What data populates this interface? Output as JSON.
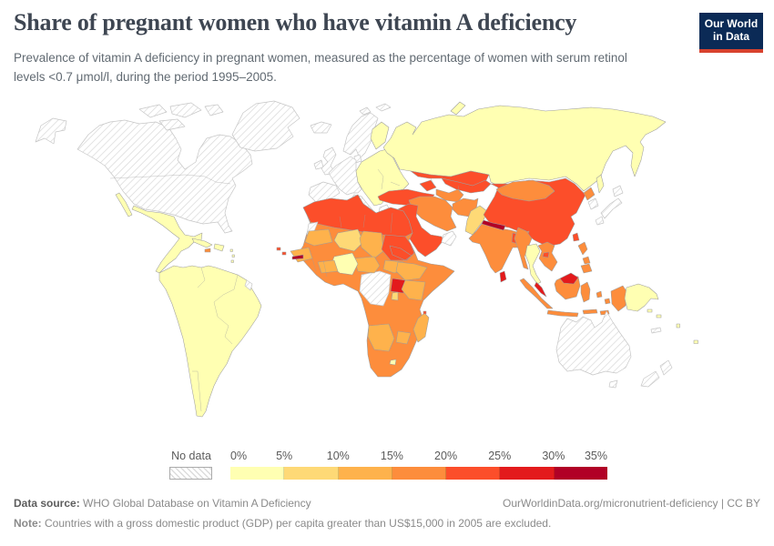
{
  "header": {
    "title": "Share of pregnant women who have vitamin A deficiency",
    "subtitle": "Prevalence of vitamin A deficiency in pregnant women, measured as the percentage of women with serum retinol levels <0.7 μmol/l, during the period 1995–2005.",
    "logo": {
      "line1": "Our World",
      "line2": "in Data",
      "bg": "#0b2a56",
      "accent": "#d7422e"
    }
  },
  "footer": {
    "source_label": "Data source:",
    "source_text": " WHO Global Database on Vitamin A Deficiency",
    "url_text": "OurWorldinData.org/micronutrient-deficiency | CC BY",
    "note_label": "Note:",
    "note_text": " Countries with a gross domestic product (GDP) per capita greater than US$15,000 in 2005 are excluded."
  },
  "chart_data": {
    "type": "choropleth",
    "title": "Share of pregnant women who have vitamin A deficiency",
    "metric": "Prevalence of vitamin A deficiency in pregnant women (% of women with serum retinol <0.7 μmol/l)",
    "period": "1995–2005",
    "unit": "%",
    "legend": {
      "nodata_label": "No data",
      "ticks": [
        "0%",
        "5%",
        "10%",
        "15%",
        "20%",
        "25%",
        "30%",
        "35%"
      ],
      "bins": [
        {
          "range": "0–5%",
          "color": "#FFFFB2"
        },
        {
          "range": "5–10%",
          "color": "#FED976"
        },
        {
          "range": "10–15%",
          "color": "#FEB24C"
        },
        {
          "range": "15–20%",
          "color": "#FD8D3C"
        },
        {
          "range": "20–25%",
          "color": "#FC4E2A"
        },
        {
          "range": "25–30%",
          "color": "#E31A1C"
        },
        {
          "range": "30–35%",
          "color": "#B10026"
        }
      ]
    },
    "regions": [
      {
        "id": "canada-usa",
        "name": "United States & Canada",
        "bin": null
      },
      {
        "id": "alaska",
        "name": "Alaska (United States)",
        "bin": null
      },
      {
        "id": "arctic-islands",
        "name": "Canadian Arctic islands",
        "bin": null
      },
      {
        "id": "greenland",
        "name": "Greenland",
        "bin": null
      },
      {
        "id": "iceland",
        "name": "Iceland",
        "bin": null
      },
      {
        "id": "svalbard",
        "name": "Svalbard",
        "bin": null
      },
      {
        "id": "british-isles",
        "name": "United Kingdom & Ireland",
        "bin": null
      },
      {
        "id": "scandinavia",
        "name": "Norway, Sweden & Denmark",
        "bin": null
      },
      {
        "id": "western-europe",
        "name": "Western Europe",
        "bin": null
      },
      {
        "id": "iberia",
        "name": "Spain & Portugal",
        "bin": null
      },
      {
        "id": "italy",
        "name": "Italy",
        "bin": null
      },
      {
        "id": "greece",
        "name": "Greece",
        "bin": null
      },
      {
        "id": "french-guiana",
        "name": "French Guiana",
        "bin": null
      },
      {
        "id": "dr-congo",
        "name": "DR Congo & Central African Rep.",
        "bin": null
      },
      {
        "id": "western-sahara",
        "name": "Western Sahara",
        "bin": null
      },
      {
        "id": "oman-uae",
        "name": "Oman & United Arab Emirates",
        "bin": null
      },
      {
        "id": "japan",
        "name": "Japan",
        "bin": null
      },
      {
        "id": "south-korea",
        "name": "South Korea",
        "bin": null
      },
      {
        "id": "australia",
        "name": "Australia",
        "bin": null
      },
      {
        "id": "new-zealand",
        "name": "New Zealand",
        "bin": null
      },
      {
        "id": "new-caledonia",
        "name": "New Caledonia",
        "bin": null
      },
      {
        "id": "mexico-central-america",
        "name": "Mexico & Central America",
        "bin": 0
      },
      {
        "id": "baja",
        "name": "Baja California (Mexico)",
        "bin": 0
      },
      {
        "id": "cuba",
        "name": "Cuba",
        "bin": 0
      },
      {
        "id": "hispaniola",
        "name": "Hispaniola",
        "bin": 0
      },
      {
        "id": "lesser-antilles",
        "name": "Lesser Antilles",
        "bin": 0
      },
      {
        "id": "south-america",
        "name": "South America",
        "bin": 0
      },
      {
        "id": "eastern-europe",
        "name": "Eastern Europe",
        "bin": 0
      },
      {
        "id": "finland",
        "name": "Finland",
        "bin": 0
      },
      {
        "id": "russia",
        "name": "Russia",
        "bin": 0
      },
      {
        "id": "thailand",
        "name": "Thailand",
        "bin": 0
      },
      {
        "id": "papua-new-guinea",
        "name": "Papua New Guinea",
        "bin": 0
      },
      {
        "id": "pacific-islands",
        "name": "Pacific islands",
        "bin": 0
      },
      {
        "id": "nigeria",
        "name": "Nigeria",
        "bin": 0
      },
      {
        "id": "lesotho",
        "name": "Lesotho",
        "bin": 0
      },
      {
        "id": "pakistan",
        "name": "Pakistan",
        "bin": 1
      },
      {
        "id": "niger",
        "name": "Niger",
        "bin": 1
      },
      {
        "id": "rwanda-burundi",
        "name": "Rwanda & Burundi",
        "bin": 1
      },
      {
        "id": "mauritania",
        "name": "Mauritania",
        "bin": 2
      },
      {
        "id": "chad",
        "name": "Chad",
        "bin": 2
      },
      {
        "id": "south-sudan",
        "name": "South Sudan",
        "bin": 2
      },
      {
        "id": "ethiopia",
        "name": "Ethiopia",
        "bin": 2
      },
      {
        "id": "kenya",
        "name": "Kenya",
        "bin": 2
      },
      {
        "id": "cameroon",
        "name": "Cameroon",
        "bin": 2
      },
      {
        "id": "west-africa-light",
        "name": "Senegal & Burkina Faso",
        "bin": 2
      },
      {
        "id": "namibia-botswana",
        "name": "Namibia & Botswana",
        "bin": 2
      },
      {
        "id": "zimbabwe",
        "name": "Zimbabwe",
        "bin": 2
      },
      {
        "id": "madagascar",
        "name": "Madagascar",
        "bin": 2
      },
      {
        "id": "africa",
        "name": "Sub-Saharan Africa (other)",
        "bin": 3
      },
      {
        "id": "jamaica",
        "name": "Jamaica",
        "bin": 3
      },
      {
        "id": "iran",
        "name": "Iran",
        "bin": 3
      },
      {
        "id": "turkmenistan",
        "name": "Turkmenistan",
        "bin": 3
      },
      {
        "id": "afghanistan",
        "name": "Afghanistan",
        "bin": 3
      },
      {
        "id": "india",
        "name": "India",
        "bin": 3
      },
      {
        "id": "mongolia",
        "name": "Mongolia",
        "bin": 3
      },
      {
        "id": "north-korea",
        "name": "North Korea",
        "bin": 3
      },
      {
        "id": "myanmar",
        "name": "Myanmar",
        "bin": 3
      },
      {
        "id": "indochina",
        "name": "Vietnam, Laos & Cambodia",
        "bin": 3
      },
      {
        "id": "indonesia",
        "name": "Indonesia",
        "bin": 3
      },
      {
        "id": "philippines",
        "name": "Philippines",
        "bin": 3
      },
      {
        "id": "turkey",
        "name": "Turkey",
        "bin": 4
      },
      {
        "id": "caucasus",
        "name": "Caucasus",
        "bin": 4
      },
      {
        "id": "kazakhstan",
        "name": "Kazakhstan",
        "bin": 4
      },
      {
        "id": "central-asia",
        "name": "Uzbekistan, Kyrgyzstan & Tajikistan",
        "bin": 4
      },
      {
        "id": "china",
        "name": "China",
        "bin": 4
      },
      {
        "id": "taiwan",
        "name": "Taiwan",
        "bin": 4
      },
      {
        "id": "middle-east",
        "name": "Saudi Arabia, Iraq, Syria & Yemen",
        "bin": 4
      },
      {
        "id": "north-africa",
        "name": "Morocco, Algeria, Libya & Egypt",
        "bin": 4
      },
      {
        "id": "sudan",
        "name": "Sudan",
        "bin": 4
      },
      {
        "id": "eritrea",
        "name": "Eritrea & Djibouti",
        "bin": 4
      },
      {
        "id": "bangladesh",
        "name": "Bangladesh",
        "bin": 4
      },
      {
        "id": "cape-verde",
        "name": "Cape Verde",
        "bin": 4
      },
      {
        "id": "comoros",
        "name": "Comoros",
        "bin": 4
      },
      {
        "id": "uganda",
        "name": "Uganda",
        "bin": 5
      },
      {
        "id": "sri-lanka",
        "name": "Sri Lanka",
        "bin": 5
      },
      {
        "id": "malaysia",
        "name": "Malaysia",
        "bin": 5
      },
      {
        "id": "nepal",
        "name": "Nepal",
        "bin": 6
      },
      {
        "id": "gambia",
        "name": "Gambia",
        "bin": 6
      }
    ]
  }
}
